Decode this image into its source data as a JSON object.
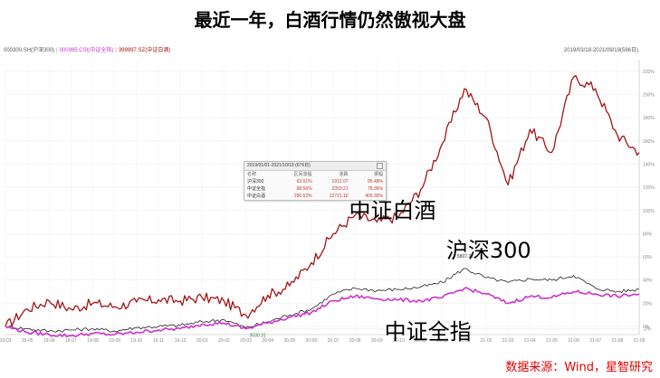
{
  "title": "最近一年，白酒行情仍然傲视大盘",
  "header": {
    "legend": [
      {
        "text": "000300.SH(沪深300)",
        "color": "#555555"
      },
      {
        "text": "000985.CSI(中证全指)",
        "color": "#cc33cc"
      },
      {
        "text": "399997.SZ(中证白酒)",
        "color": "#a31515"
      }
    ],
    "range": "2019/03/18-2021/09/19(586日)"
  },
  "source": "数据来源：Wind，星智研究",
  "stats_table": {
    "caption": "2019/01/01-2021/10/19 (676日)",
    "headers": [
      "名称",
      "区间涨幅",
      "涨跌",
      "振幅"
    ],
    "rows": [
      [
        "沪深300",
        "63.51%",
        "1912.07",
        "95.48%"
      ],
      [
        "中证全指",
        "68.56%",
        "2353.21",
        "78.36%"
      ],
      [
        "中证白酒",
        "290.52%",
        "12721.10",
        "400.39%"
      ]
    ]
  },
  "chart_data": {
    "type": "line",
    "title": "最近一年，白酒行情仍然傲视大盘",
    "x": [
      "19-03",
      "19-05",
      "19-06",
      "19-07",
      "19-08",
      "19-09",
      "19-10",
      "19-11",
      "19-12",
      "20-01",
      "20-02",
      "20-03",
      "20-04",
      "20-05",
      "20-06",
      "20-07",
      "20-08",
      "20-09",
      "20-10",
      "20-11",
      "20-12",
      "21-01",
      "21-02",
      "21-03",
      "21-04",
      "21-05",
      "21-06",
      "21-07",
      "21-08",
      "21-09"
    ],
    "x_ticks": [
      "19-03",
      "19-05",
      "19-06",
      "19-07",
      "19-08",
      "19-09",
      "19-10",
      "19-11",
      "19-12",
      "20-01",
      "20-02",
      "20-03",
      "20-04",
      "20-05",
      "20-06",
      "20-07",
      "20-08",
      "20-09",
      "20-10",
      "20-11",
      "20-12",
      "21-01",
      "21-02",
      "21-03",
      "21-04",
      "21-05",
      "21-06",
      "21-07",
      "21-08",
      "21-09"
    ],
    "y_ticks": [
      "-2%",
      "0%",
      "20%",
      "40%",
      "60%",
      "80%",
      "100%",
      "120%",
      "140%",
      "160%",
      "180%",
      "200%",
      "220%"
    ],
    "ylabel": "",
    "ylim": [
      -7,
      230
    ],
    "y_unit": "%",
    "series": [
      {
        "name": "中证白酒",
        "color": "#a31515",
        "values": [
          0,
          15,
          22,
          15,
          20,
          17,
          21,
          23,
          22,
          25,
          22,
          10,
          27,
          35,
          55,
          80,
          96,
          90,
          95,
          118,
          158,
          205,
          180,
          122,
          170,
          150,
          215,
          205,
          165,
          150
        ]
      },
      {
        "name": "沪深300",
        "color": "#222222",
        "values": [
          0,
          -2,
          -4,
          -3,
          -2,
          -4,
          -1,
          0,
          1,
          4,
          6,
          -1,
          4,
          10,
          15,
          28,
          33,
          31,
          32,
          34,
          38,
          50,
          42,
          38,
          41,
          40,
          44,
          33,
          30,
          32
        ]
      },
      {
        "name": "中证全指",
        "color": "#cc33cc",
        "values": [
          0,
          -5,
          -7,
          -8,
          -6,
          -7,
          -5,
          -3,
          -2,
          2,
          3,
          -2,
          3,
          8,
          12,
          22,
          26,
          24,
          23,
          22,
          25,
          33,
          28,
          20,
          26,
          25,
          30,
          28,
          26,
          28
        ]
      }
    ],
    "labels": [
      {
        "text": "中证白酒",
        "series": 0
      },
      {
        "text": "沪深300",
        "series": 1
      },
      {
        "text": "中证全指",
        "series": 2
      }
    ],
    "annotations": [
      "5807.72",
      "3530.31"
    ],
    "grid": true
  }
}
